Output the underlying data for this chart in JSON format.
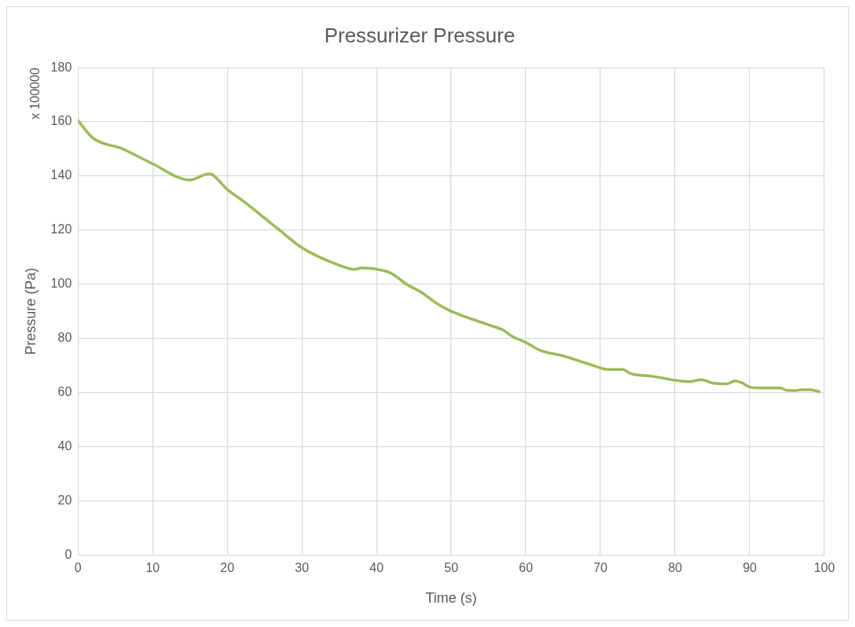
{
  "chart_data": {
    "type": "line",
    "title": "Pressurizer Pressure",
    "xlabel": "Time (s)",
    "ylabel": "Pressure (Pa)",
    "annotations": [
      "x 100000"
    ],
    "x": [
      0,
      2,
      6,
      10,
      15,
      17.5,
      18,
      20,
      22,
      27,
      30,
      35,
      37,
      38,
      41,
      42,
      44,
      46,
      48,
      50,
      55,
      57,
      58,
      60,
      62,
      65,
      69,
      71,
      73,
      74,
      77,
      80,
      82,
      83.5,
      85,
      87,
      88,
      89,
      90,
      91,
      94,
      95,
      96,
      97,
      98,
      99.3
    ],
    "series": [
      {
        "color": "#9bbb59",
        "values": [
          160.5,
          154,
          150,
          144.5,
          138.5,
          140.8,
          140.5,
          135,
          131,
          120,
          113.5,
          107,
          105.5,
          106,
          105,
          104,
          100,
          97,
          93,
          90,
          85,
          83,
          81,
          78.5,
          75.5,
          73.5,
          70,
          68.5,
          68.5,
          67,
          66,
          64.5,
          64,
          64.7,
          63.5,
          63.2,
          64.3,
          63.5,
          62,
          61.7,
          61.7,
          60.8,
          60.7,
          61,
          61,
          60.3
        ]
      }
    ],
    "xlim": [
      0,
      100
    ],
    "xticks": [
      0,
      10,
      20,
      30,
      40,
      50,
      60,
      70,
      80,
      90,
      100
    ],
    "ylim": [
      0,
      180
    ],
    "yticks": [
      0,
      20,
      40,
      60,
      80,
      100,
      120,
      140,
      160,
      180
    ],
    "grid": true,
    "legend": false,
    "marker": "none",
    "line_style": "solid"
  }
}
